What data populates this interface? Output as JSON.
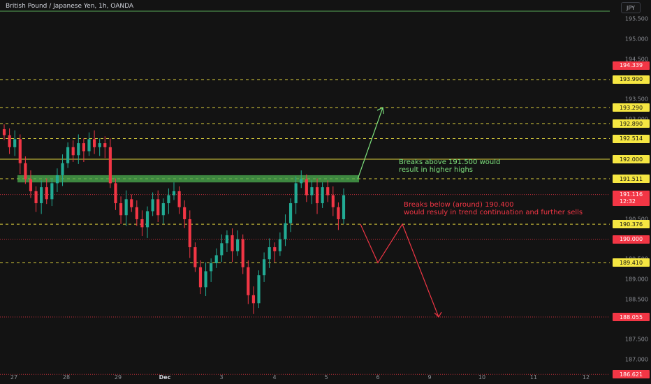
{
  "header": {
    "title": "British Pound / Japanese Yen, 1h, OANDA",
    "currency_button": "JPY"
  },
  "colors": {
    "background": "#131313",
    "bull": "#22ab94",
    "bear": "#f23645",
    "yellow": "#f5e642",
    "green_arrow": "#7ee37e",
    "red_arrow": "#f23645"
  },
  "chart_data": {
    "type": "candlestick",
    "symbol": "GBPJPY",
    "timeframe": "1h",
    "ylim": [
      186.5,
      196.0
    ],
    "y_ticks": [
      "195.500",
      "195.000",
      "194.500",
      "194.000",
      "193.500",
      "193.000",
      "192.500",
      "192.000",
      "191.500",
      "191.000",
      "190.500",
      "190.000",
      "189.500",
      "189.000",
      "188.500",
      "188.000",
      "187.500",
      "187.000"
    ],
    "x_ticks": [
      {
        "label": "27",
        "bold": false
      },
      {
        "label": "28",
        "bold": false
      },
      {
        "label": "29",
        "bold": false
      },
      {
        "label": "Dec",
        "bold": true
      },
      {
        "label": "3",
        "bold": false
      },
      {
        "label": "4",
        "bold": false
      },
      {
        "label": "5",
        "bold": false
      },
      {
        "label": "6",
        "bold": false
      },
      {
        "label": "9",
        "bold": false
      },
      {
        "label": "10",
        "bold": false
      },
      {
        "label": "11",
        "bold": false
      },
      {
        "label": "12",
        "bold": false
      }
    ],
    "levels": [
      {
        "price": 195.7,
        "style": "solid-green"
      },
      {
        "price": 193.99,
        "style": "dashed-yellow"
      },
      {
        "price": 193.29,
        "style": "dashed-yellow"
      },
      {
        "price": 192.89,
        "style": "dashed-yellow"
      },
      {
        "price": 192.514,
        "style": "dashed-yellow"
      },
      {
        "price": 192.0,
        "style": "solid-yellow"
      },
      {
        "price": 191.511,
        "style": "dashed-yellow"
      },
      {
        "price": 191.116,
        "style": "dotted-red"
      },
      {
        "price": 190.376,
        "style": "dashed-yellow"
      },
      {
        "price": 190.0,
        "style": "dotted-red"
      },
      {
        "price": 189.41,
        "style": "dashed-yellow"
      },
      {
        "price": 188.055,
        "style": "dotted-red"
      },
      {
        "price": 186.621,
        "style": "dotted-red"
      }
    ],
    "price_tags": [
      {
        "value": "194.339",
        "price": 194.339,
        "color": "red"
      },
      {
        "value": "193.990",
        "price": 193.99,
        "color": "yellow"
      },
      {
        "value": "193.290",
        "price": 193.29,
        "color": "yellow"
      },
      {
        "value": "192.890",
        "price": 192.89,
        "color": "yellow"
      },
      {
        "value": "192.514",
        "price": 192.514,
        "color": "yellow"
      },
      {
        "value": "192.000",
        "price": 192.0,
        "color": "yellow"
      },
      {
        "value": "191.511",
        "price": 191.511,
        "color": "yellow"
      },
      {
        "value": "191.116\n12:32",
        "price": 191.116,
        "color": "red"
      },
      {
        "value": "190.376",
        "price": 190.376,
        "color": "yellow"
      },
      {
        "value": "190.000",
        "price": 190.0,
        "color": "red"
      },
      {
        "value": "189.410",
        "price": 189.41,
        "color": "yellow"
      },
      {
        "value": "188.055",
        "price": 188.055,
        "color": "red"
      },
      {
        "value": "186.621",
        "price": 186.621,
        "color": "red"
      }
    ],
    "zone": {
      "low": 191.42,
      "high": 191.6,
      "color": "#4caf50"
    },
    "close_series": [
      192.6,
      192.3,
      192.5,
      191.9,
      191.5,
      191.2,
      190.9,
      191.3,
      191.0,
      191.4,
      191.6,
      191.9,
      192.3,
      192.1,
      192.4,
      192.2,
      192.5,
      192.3,
      192.4,
      192.3,
      191.4,
      190.9,
      190.6,
      191.0,
      190.8,
      190.5,
      190.3,
      190.7,
      191.0,
      190.6,
      190.9,
      191.1,
      191.2,
      190.8,
      190.5,
      189.8,
      189.3,
      188.8,
      189.2,
      189.4,
      189.6,
      189.9,
      190.1,
      189.7,
      190.0,
      189.3,
      188.6,
      188.4,
      189.1,
      189.5,
      189.8,
      189.7,
      190.0,
      190.4,
      190.9,
      191.4,
      191.5,
      191.1,
      191.3,
      190.9,
      191.3,
      191.1,
      190.8,
      190.5,
      191.1
    ],
    "annotations": {
      "up": "Breaks above 191.500 would\nresult in higher highs",
      "down": "Breaks below (around) 190.400\nwould resuly in trend continuation and further sells"
    }
  }
}
